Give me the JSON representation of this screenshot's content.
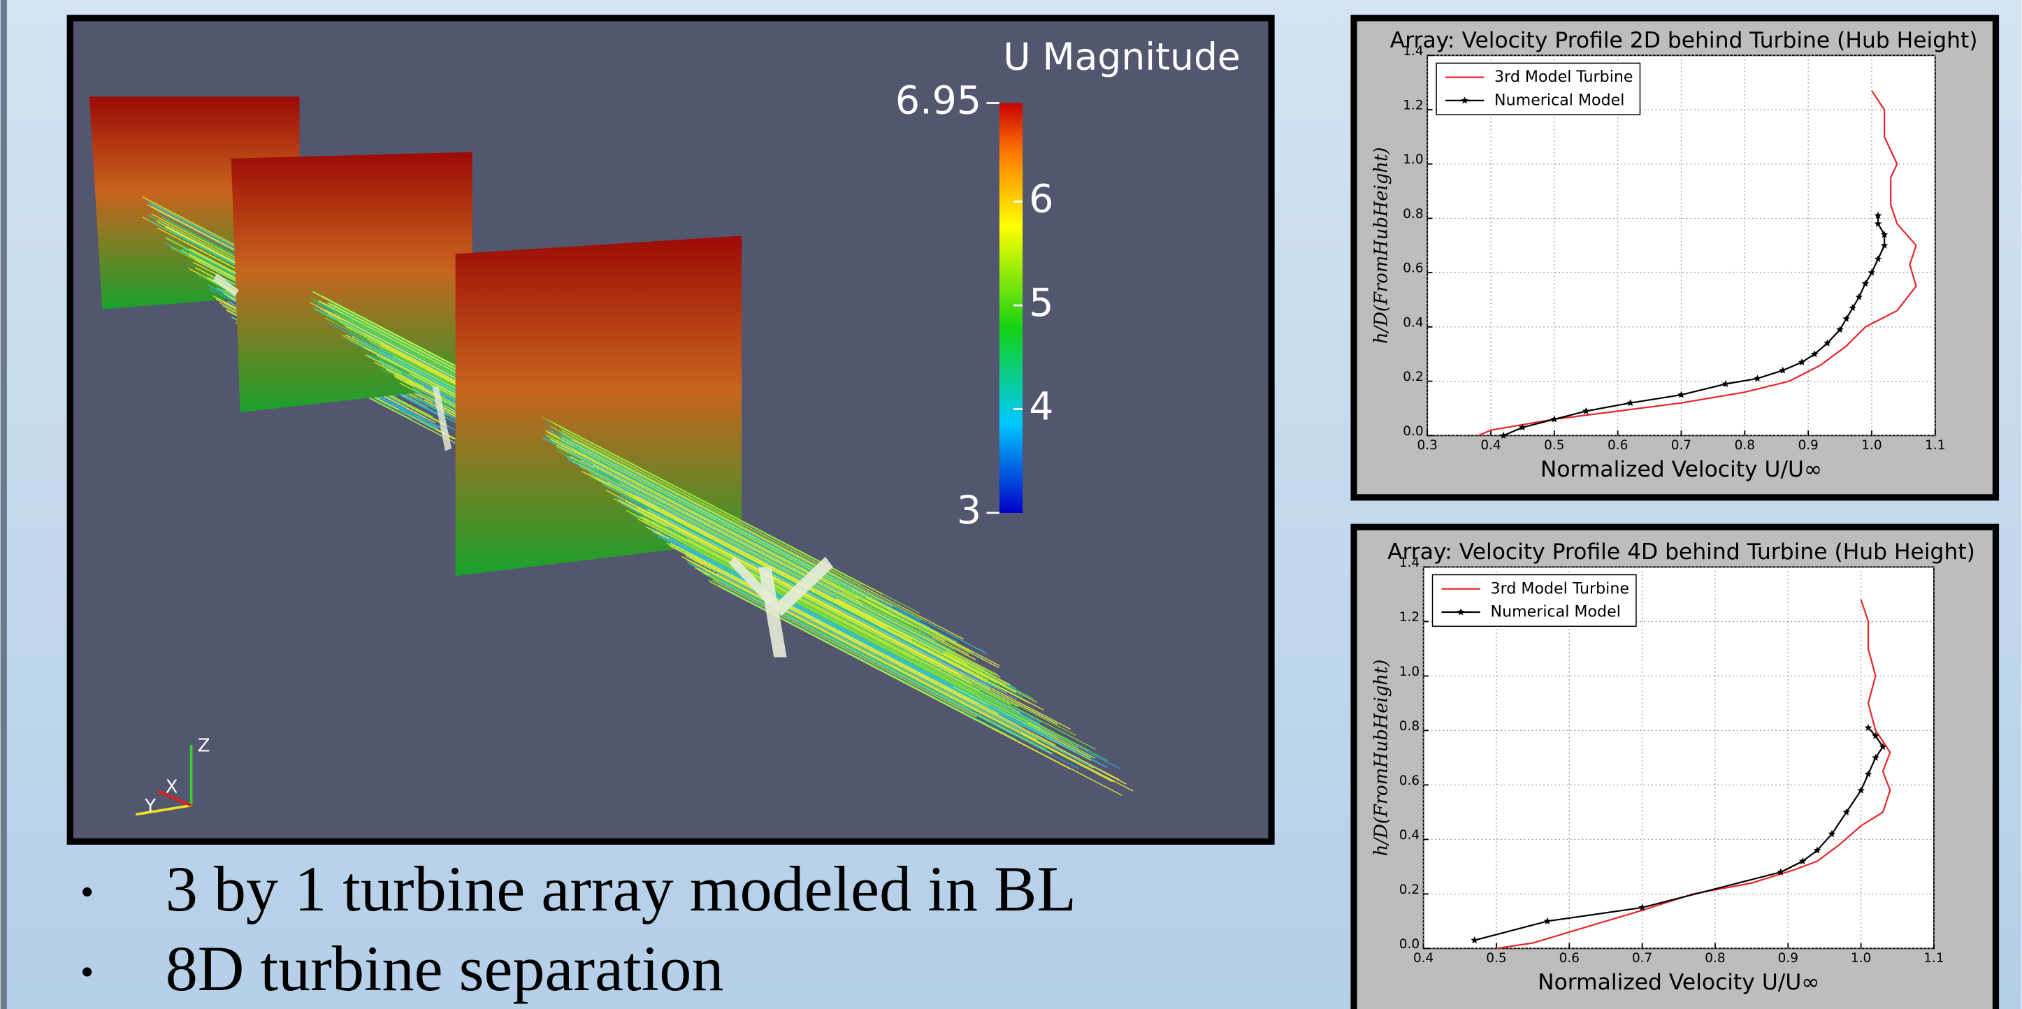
{
  "render": {
    "colorbar_title": "U Magnitude",
    "range": [
      3,
      6.95
    ],
    "ticks": [
      3,
      4,
      5,
      6,
      6.95
    ],
    "axes": [
      "X",
      "Y",
      "Z"
    ]
  },
  "bullets": [
    "3 by 1 turbine array modeled in BL",
    "8D turbine separation"
  ],
  "chart_data": [
    {
      "type": "line",
      "title": "Array: Velocity Profile 2D behind Turbine (Hub Height)",
      "xlabel": "Normalized Velocity U/U∞",
      "ylabel": "h/D(FromHubHeight)",
      "xlim": [
        0.3,
        1.1
      ],
      "xticks": [
        0.3,
        0.4,
        0.5,
        0.6,
        0.7,
        0.8,
        0.9,
        {
          "value": 1,
          "label": "1.0"
        },
        1.1
      ],
      "ylim": [
        0,
        1.4
      ],
      "yticks": [
        {
          "value": 0,
          "label": "0.0"
        },
        0.2,
        0.4,
        0.6,
        0.8,
        {
          "value": 1,
          "label": "1.0"
        },
        1.2,
        1.4
      ],
      "grid": true,
      "legend": "upper left",
      "series": [
        {
          "name": "3rd Model Turbine",
          "color": "#e8262b",
          "x": [
            0.38,
            0.4,
            0.5,
            0.6,
            0.7,
            0.8,
            0.87,
            0.92,
            0.96,
            0.99,
            1.04,
            1.07,
            1.06,
            1.07,
            1.04,
            1.03,
            1.03,
            1.04,
            1.02,
            1.02,
            1.0
          ],
          "values": [
            0,
            0.02,
            0.06,
            0.09,
            0.12,
            0.16,
            0.2,
            0.26,
            0.33,
            0.4,
            0.46,
            0.55,
            0.63,
            0.7,
            0.78,
            0.85,
            0.95,
            1.0,
            1.1,
            1.2,
            1.27
          ]
        },
        {
          "name": "Numerical Model",
          "color": "#000000",
          "marker": "*",
          "x": [
            0.42,
            0.45,
            0.5,
            0.55,
            0.62,
            0.7,
            0.77,
            0.82,
            0.86,
            0.89,
            0.91,
            0.93,
            0.95,
            0.96,
            0.97,
            0.98,
            0.99,
            1.0,
            1.01,
            1.02,
            1.02,
            1.01,
            1.01
          ],
          "values": [
            0,
            0.03,
            0.06,
            0.09,
            0.12,
            0.15,
            0.19,
            0.21,
            0.24,
            0.27,
            0.3,
            0.34,
            0.39,
            0.43,
            0.47,
            0.51,
            0.56,
            0.6,
            0.65,
            0.7,
            0.74,
            0.78,
            0.81
          ]
        }
      ]
    },
    {
      "type": "line",
      "title": "Array: Velocity Profile 4D behind Turbine (Hub Height)",
      "xlabel": "Normalized Velocity U/U∞",
      "ylabel": "h/D(FromHubHeight)",
      "xlim": [
        0.4,
        1.1
      ],
      "xticks": [
        0.4,
        0.5,
        0.6,
        0.7,
        0.8,
        0.9,
        {
          "value": 1,
          "label": "1.0"
        },
        1.1
      ],
      "ylim": [
        0,
        1.4
      ],
      "yticks": [
        {
          "value": 0,
          "label": "0.0"
        },
        0.2,
        0.4,
        0.6,
        0.8,
        {
          "value": 1,
          "label": "1.0"
        },
        1.2,
        1.4
      ],
      "grid": true,
      "legend": "upper left",
      "series": [
        {
          "name": "3rd Model Turbine",
          "color": "#e8262b",
          "x": [
            0.5,
            0.55,
            0.6,
            0.7,
            0.77,
            0.85,
            0.91,
            0.94,
            0.97,
            1.0,
            1.03,
            1.04,
            1.03,
            1.04,
            1.02,
            1.01,
            1.02,
            1.01,
            1.01,
            1.0
          ],
          "values": [
            0,
            0.02,
            0.06,
            0.14,
            0.2,
            0.24,
            0.29,
            0.32,
            0.38,
            0.45,
            0.5,
            0.58,
            0.65,
            0.72,
            0.8,
            0.9,
            1.0,
            1.1,
            1.2,
            1.28
          ]
        },
        {
          "name": "Numerical Model",
          "color": "#000000",
          "marker": "*",
          "x": [
            0.47,
            0.57,
            0.7,
            0.89,
            0.92,
            0.94,
            0.96,
            0.98,
            1.0,
            1.01,
            1.02,
            1.03,
            1.02,
            1.01
          ],
          "values": [
            0.03,
            0.1,
            0.15,
            0.28,
            0.32,
            0.36,
            0.42,
            0.5,
            0.58,
            0.64,
            0.7,
            0.74,
            0.78,
            0.81
          ]
        }
      ]
    }
  ]
}
